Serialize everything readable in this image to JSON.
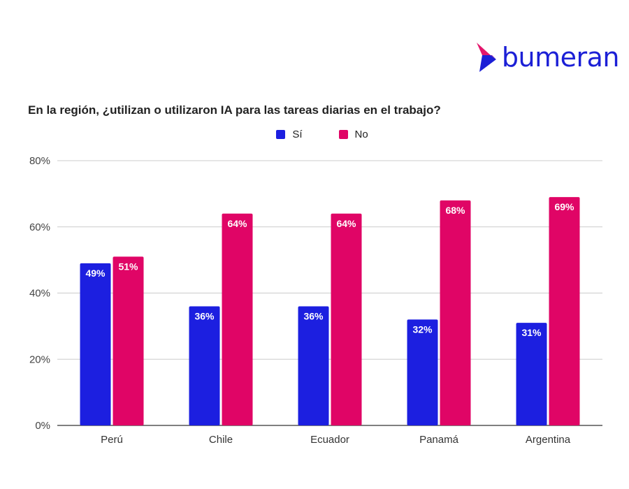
{
  "brand": {
    "name": "bumeran",
    "color": "#1b1fd6",
    "accent": "#e4166c"
  },
  "chart_data": {
    "type": "bar",
    "title": "En la región, ¿utilizan o utilizaron IA para las tareas diarias en el trabajo?",
    "categories": [
      "Perú",
      "Chile",
      "Ecuador",
      "Panamá",
      "Argentina"
    ],
    "series": [
      {
        "name": "Sí",
        "color": "#1c1fe0",
        "values": [
          49,
          36,
          36,
          32,
          31
        ],
        "labels": [
          "49%",
          "36%",
          "36%",
          "32%",
          "31%"
        ]
      },
      {
        "name": "No",
        "color": "#e00566",
        "values": [
          51,
          64,
          64,
          68,
          69
        ],
        "labels": [
          "51%",
          "64%",
          "64%",
          "68%",
          "69%"
        ]
      }
    ],
    "ylim": [
      0,
      80
    ],
    "yticks": [
      0,
      20,
      40,
      60,
      80
    ],
    "ytick_labels": [
      "0%",
      "20%",
      "40%",
      "60%",
      "80%"
    ],
    "xlabel": "",
    "ylabel": "",
    "grid": true,
    "legend": "top-center"
  }
}
